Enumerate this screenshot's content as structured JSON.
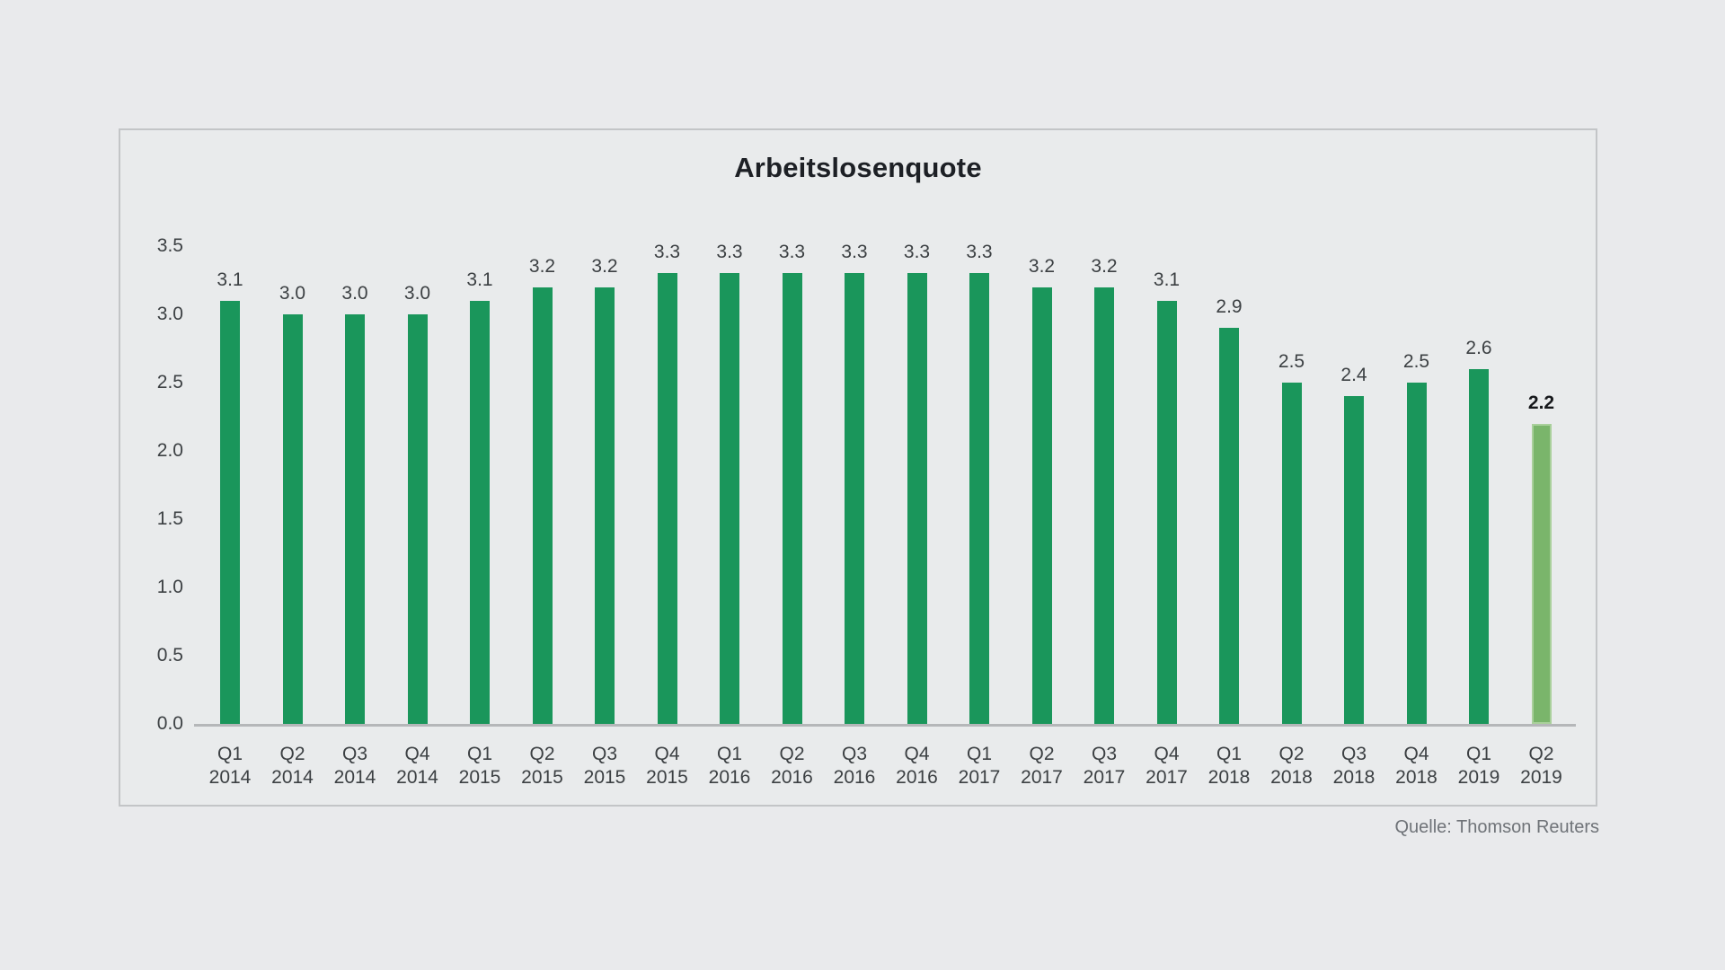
{
  "page": {
    "background_color": "#e9eaec",
    "panel_border_color": "#c3c5c7"
  },
  "source_note": "Quelle: Thomson Reuters",
  "chart_data": {
    "type": "bar",
    "title": "Arbeitslosenquote",
    "categories": [
      "Q1 2014",
      "Q2 2014",
      "Q3 2014",
      "Q4 2014",
      "Q1 2015",
      "Q2 2015",
      "Q3 2015",
      "Q4 2015",
      "Q1 2016",
      "Q2 2016",
      "Q3 2016",
      "Q4 2016",
      "Q1 2017",
      "Q2 2017",
      "Q3 2017",
      "Q4 2017",
      "Q1 2018",
      "Q2 2018",
      "Q3 2018",
      "Q4 2018",
      "Q1 2019",
      "Q2 2019"
    ],
    "values": [
      3.1,
      3.0,
      3.0,
      3.0,
      3.1,
      3.2,
      3.2,
      3.3,
      3.3,
      3.3,
      3.3,
      3.3,
      3.3,
      3.2,
      3.2,
      3.1,
      2.9,
      2.5,
      2.4,
      2.5,
      2.6,
      2.2
    ],
    "value_label_decimals": 1,
    "highlight_index": 21,
    "xlabel": "",
    "ylabel": "",
    "ylim": [
      0,
      3.5
    ],
    "yticks": [
      0.0,
      0.5,
      1.0,
      1.5,
      2.0,
      2.5,
      3.0,
      3.5
    ],
    "grid": false,
    "legend": false,
    "colors": {
      "bar": "#1a965b",
      "highlight_fill": "#7ab56b",
      "highlight_border": "#a9d09b",
      "label": "#3c4043",
      "highlight_label": "#16181b",
      "axis_line": "#b5b7b9"
    }
  }
}
